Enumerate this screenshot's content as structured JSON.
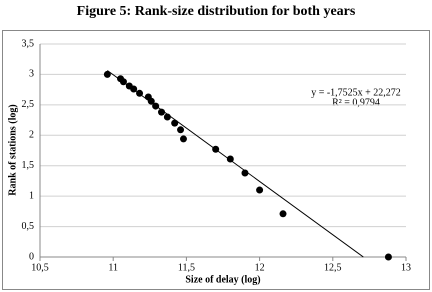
{
  "chart_data": {
    "type": "scatter",
    "title": "Figure 5: Rank-size distribution for both years",
    "x_label": "Size of delay (log)",
    "y_label": "Rank of stations (log)",
    "x": [
      10.96,
      11.05,
      11.07,
      11.11,
      11.14,
      11.18,
      11.24,
      11.26,
      11.29,
      11.33,
      11.37,
      11.42,
      11.46,
      11.48,
      11.7,
      11.8,
      11.9,
      12.0,
      12.16,
      12.88
    ],
    "series": [
      {
        "name": "Rank of stations",
        "color": "#000000",
        "values": [
          3.0,
          2.93,
          2.88,
          2.81,
          2.76,
          2.69,
          2.63,
          2.56,
          2.48,
          2.38,
          2.3,
          2.2,
          2.09,
          1.94,
          1.77,
          1.61,
          1.38,
          1.1,
          0.71,
          0
        ]
      }
    ],
    "trendline": {
      "equation": "y = -1,7525x + 22,272",
      "r2": "R² = 0,9794",
      "slope": -1.7525,
      "intercept": 22.272,
      "color": "#000000"
    },
    "xlim": [
      10.5,
      13
    ],
    "xticks": [
      {
        "value": 10.5,
        "label": "10,5"
      },
      11,
      {
        "value": 11.5,
        "label": "11,5"
      },
      12,
      {
        "value": 12.5,
        "label": "12,5"
      },
      13
    ],
    "ylim": [
      0,
      3.5
    ],
    "yticks": [
      0,
      {
        "value": 0.5,
        "label": "0,5"
      },
      1,
      {
        "value": 1.5,
        "label": "1,5"
      },
      2,
      {
        "value": 2.5,
        "label": "2,5"
      },
      3,
      {
        "value": 3.5,
        "label": "3,5"
      }
    ],
    "grid": true
  }
}
